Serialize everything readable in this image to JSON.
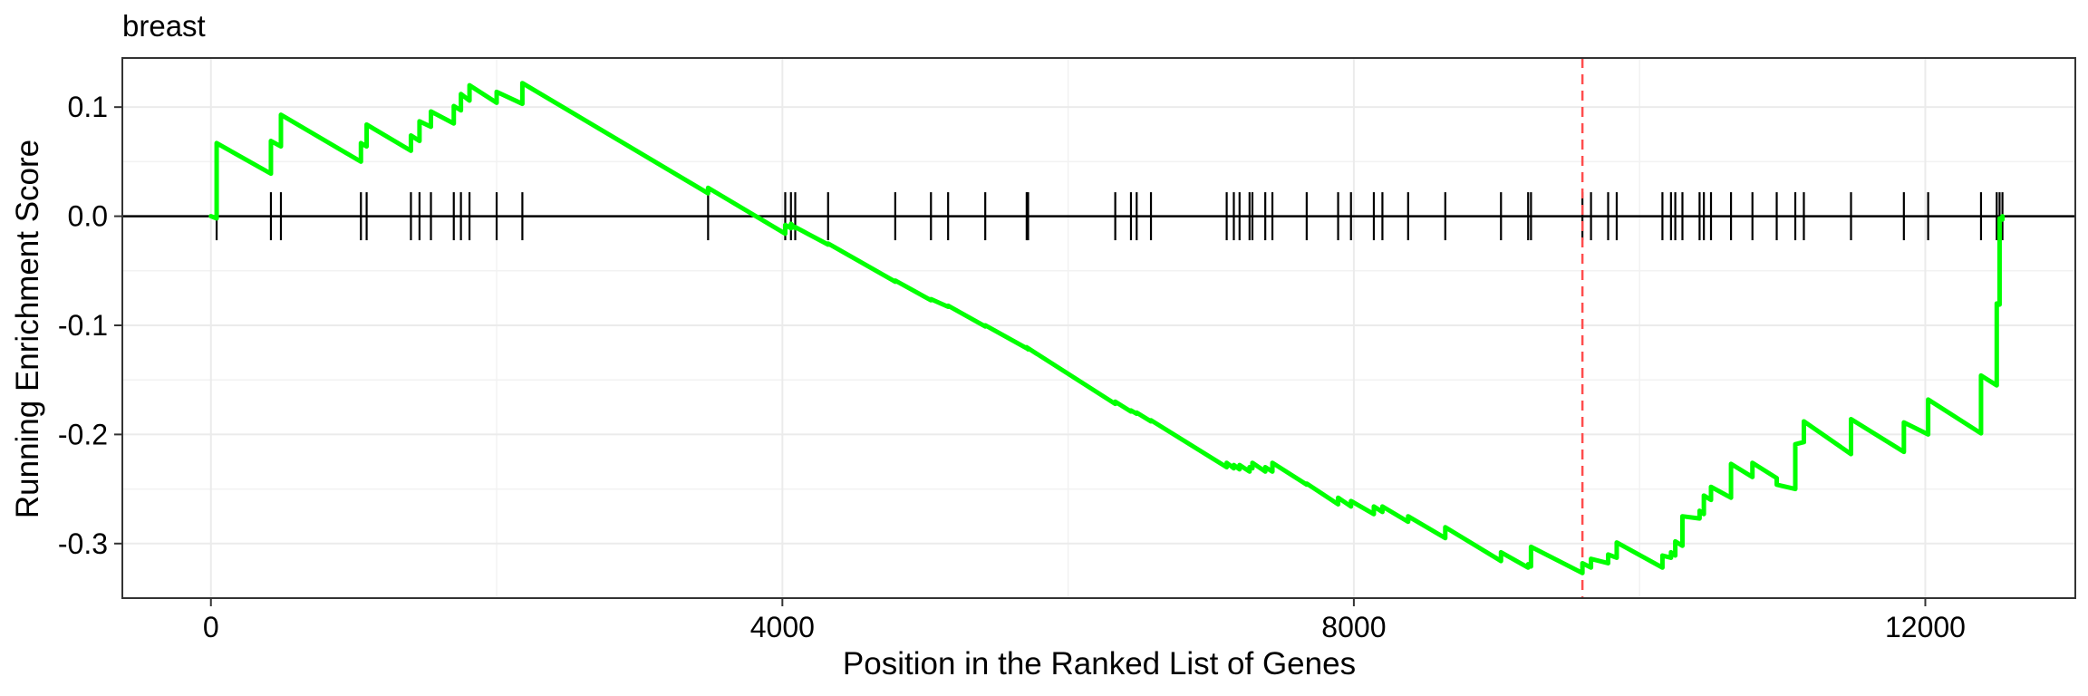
{
  "chart_data": {
    "type": "line",
    "title": "breast",
    "xlabel": "Position in the Ranked List of Genes",
    "ylabel": "Running Enrichment Score",
    "xlim": [
      -620,
      13050
    ],
    "ylim": [
      -0.35,
      0.145
    ],
    "x_ticks": [
      0,
      4000,
      8000,
      12000
    ],
    "x_tick_labels": [
      "0",
      "4000",
      "8000",
      "12000"
    ],
    "y_ticks": [
      0.1,
      0.0,
      -0.1,
      -0.2,
      -0.3
    ],
    "y_tick_labels": [
      "0.1",
      "0.0",
      "-0.1",
      "-0.2",
      "-0.3"
    ],
    "grid": true,
    "line_color": "#00ff00",
    "max_deviation_marker": {
      "x": 9600,
      "color": "#ff4d4d",
      "style": "dashed"
    },
    "zero_line": 0,
    "gene_hit_positions": [
      40,
      420,
      490,
      1050,
      1090,
      1400,
      1460,
      1540,
      1700,
      1750,
      1810,
      2000,
      2180,
      3480,
      4020,
      4060,
      4090,
      4320,
      4790,
      5040,
      5160,
      5420,
      5710,
      5720,
      6330,
      6440,
      6480,
      6580,
      7110,
      7160,
      7200,
      7270,
      7290,
      7380,
      7430,
      7670,
      7890,
      7980,
      8140,
      8200,
      8380,
      8640,
      9030,
      9220,
      9240,
      9600,
      9660,
      9780,
      9840,
      10160,
      10220,
      10250,
      10300,
      10420,
      10450,
      10500,
      10640,
      10790,
      10960,
      11090,
      11150,
      11480,
      11850,
      12020,
      12390,
      12500,
      12520,
      12540
    ],
    "series": [
      {
        "values_x": [
          0,
          40,
          40,
          420,
          420,
          490,
          490,
          1050,
          1050,
          1090,
          1090,
          1400,
          1400,
          1460,
          1460,
          1540,
          1540,
          1700,
          1700,
          1750,
          1750,
          1810,
          1810,
          2000,
          2000,
          2180,
          2180,
          3480,
          3480,
          4020,
          4020,
          4060,
          4060,
          4090,
          4090,
          4320,
          4320,
          4790,
          4790,
          5040,
          5040,
          5160,
          5160,
          5420,
          5420,
          5710,
          5710,
          5720,
          5720,
          6330,
          6330,
          6440,
          6440,
          6480,
          6480,
          6580,
          6580,
          7110,
          7110,
          7160,
          7160,
          7200,
          7200,
          7270,
          7270,
          7290,
          7290,
          7380,
          7380,
          7430,
          7430,
          7670,
          7670,
          7890,
          7890,
          7980,
          7980,
          8140,
          8140,
          8200,
          8200,
          8380,
          8380,
          8640,
          8640,
          9030,
          9030,
          9220,
          9220,
          9240,
          9240,
          9600,
          9600,
          9660,
          9660,
          9780,
          9780,
          9840,
          9840,
          10160,
          10160,
          10220,
          10220,
          10250,
          10250,
          10300,
          10300,
          10420,
          10420,
          10450,
          10450,
          10500,
          10500,
          10640,
          10640,
          10790,
          10790,
          10960,
          10960,
          11090,
          11090,
          11150,
          11150,
          11480,
          11480,
          11850,
          11850,
          12020,
          12020,
          12390,
          12390,
          12500,
          12500,
          12520,
          12520,
          12540,
          12540
        ],
        "values_y": [
          0.0,
          -0.002,
          0.067,
          0.039,
          0.069,
          0.064,
          0.093,
          0.05,
          0.067,
          0.064,
          0.084,
          0.06,
          0.074,
          0.069,
          0.087,
          0.082,
          0.096,
          0.085,
          0.101,
          0.097,
          0.112,
          0.106,
          0.12,
          0.104,
          0.114,
          0.103,
          0.122,
          0.021,
          0.026,
          -0.016,
          -0.008,
          -0.011,
          -0.007,
          -0.011,
          -0.01,
          -0.026,
          -0.025,
          -0.06,
          -0.059,
          -0.077,
          -0.076,
          -0.083,
          -0.082,
          -0.101,
          -0.1,
          -0.121,
          -0.12,
          -0.122,
          -0.121,
          -0.172,
          -0.17,
          -0.179,
          -0.178,
          -0.181,
          -0.18,
          -0.188,
          -0.187,
          -0.23,
          -0.226,
          -0.231,
          -0.228,
          -0.232,
          -0.228,
          -0.234,
          -0.23,
          -0.231,
          -0.226,
          -0.234,
          -0.23,
          -0.234,
          -0.226,
          -0.246,
          -0.245,
          -0.264,
          -0.258,
          -0.266,
          -0.261,
          -0.273,
          -0.266,
          -0.271,
          -0.266,
          -0.28,
          -0.275,
          -0.295,
          -0.285,
          -0.316,
          -0.308,
          -0.322,
          -0.319,
          -0.321,
          -0.303,
          -0.327,
          -0.318,
          -0.322,
          -0.314,
          -0.318,
          -0.31,
          -0.313,
          -0.299,
          -0.322,
          -0.311,
          -0.313,
          -0.308,
          -0.311,
          -0.298,
          -0.302,
          -0.275,
          -0.277,
          -0.27,
          -0.273,
          -0.256,
          -0.26,
          -0.248,
          -0.258,
          -0.227,
          -0.239,
          -0.226,
          -0.24,
          -0.246,
          -0.25,
          -0.209,
          -0.207,
          -0.188,
          -0.218,
          -0.186,
          -0.216,
          -0.189,
          -0.2,
          -0.168,
          -0.199,
          -0.146,
          -0.155,
          -0.08,
          -0.081,
          -0.002,
          -0.003,
          0.0
        ]
      }
    ]
  }
}
